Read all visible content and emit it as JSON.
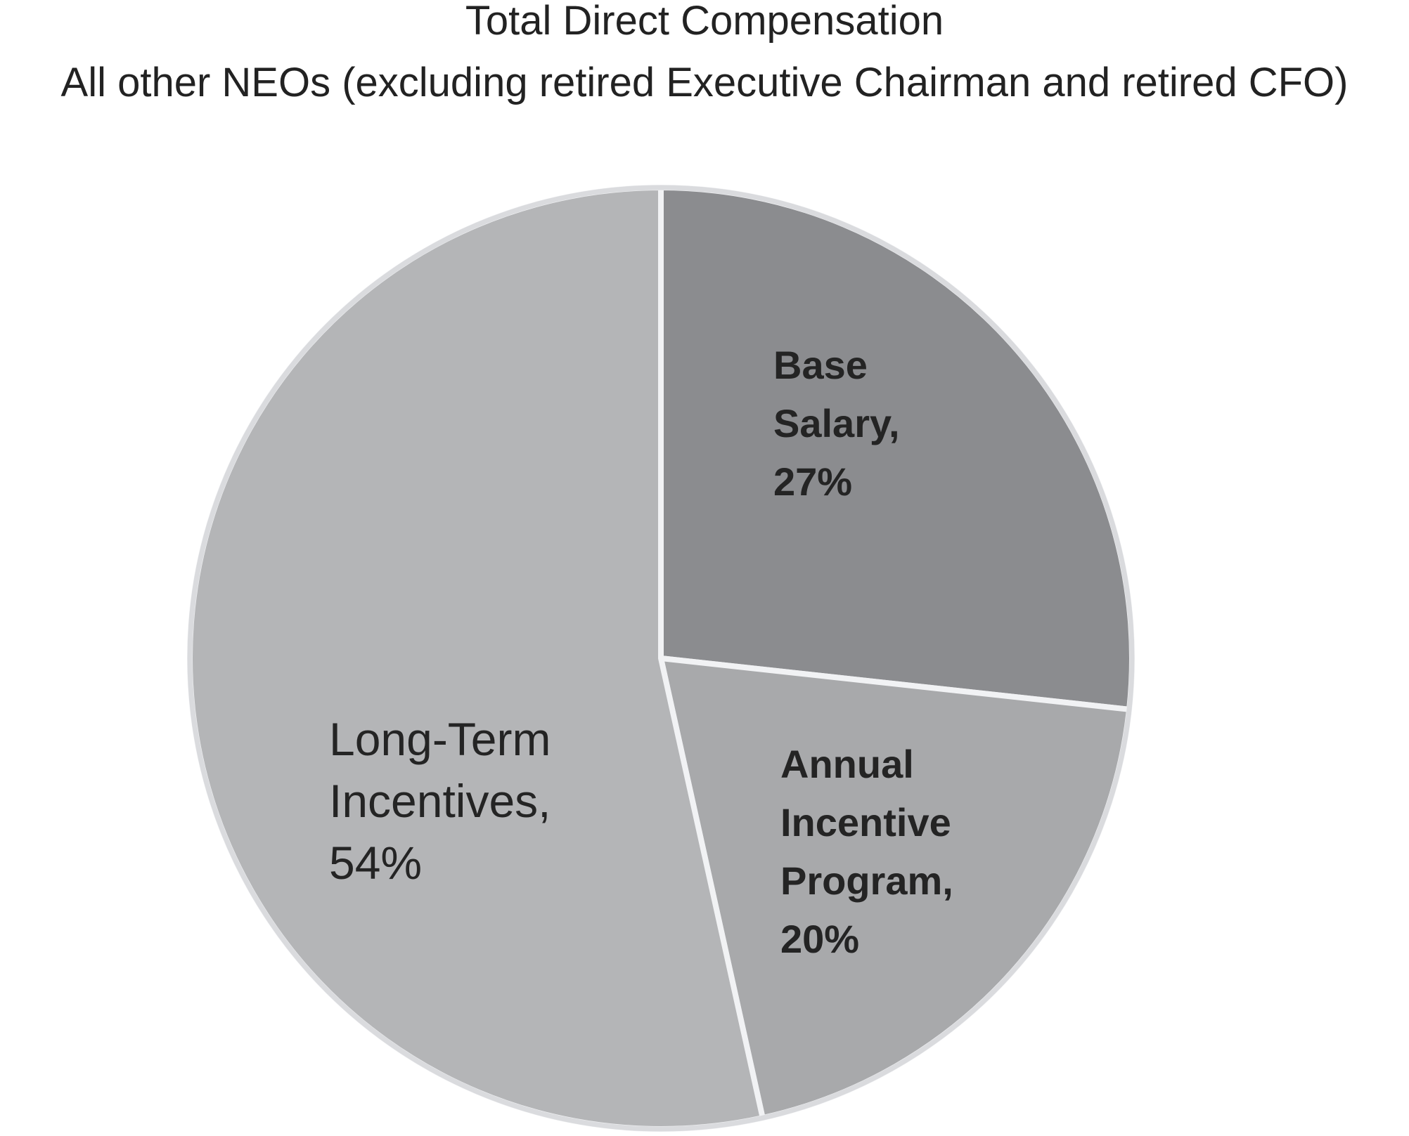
{
  "title": {
    "line1": "Total Direct Compensation",
    "line2": "All other NEOs (excluding retired Executive Chairman and retired CFO)"
  },
  "chart_data": {
    "type": "pie",
    "title": "Total Direct Compensation",
    "subtitle": "All other NEOs (excluding retired Executive Chairman and retired CFO)",
    "slices": [
      {
        "label": "Base Salary",
        "value": 27,
        "color": "#8b8c8f",
        "label_weight": "bold"
      },
      {
        "label": "Annual Incentive Program",
        "value": 20,
        "color": "#a8a9ab",
        "label_weight": "bold"
      },
      {
        "label": "Long-Term Incentives",
        "value": 54,
        "color": "#b4b5b7",
        "label_weight": "regular"
      }
    ],
    "start_angle_deg": -90,
    "direction": "clockwise",
    "legend": "none",
    "labels_position": "inside",
    "divider_color": "#f1f2f4",
    "rim_color": "#dadbde",
    "label_color": "#242424",
    "background": "#ffffff"
  }
}
